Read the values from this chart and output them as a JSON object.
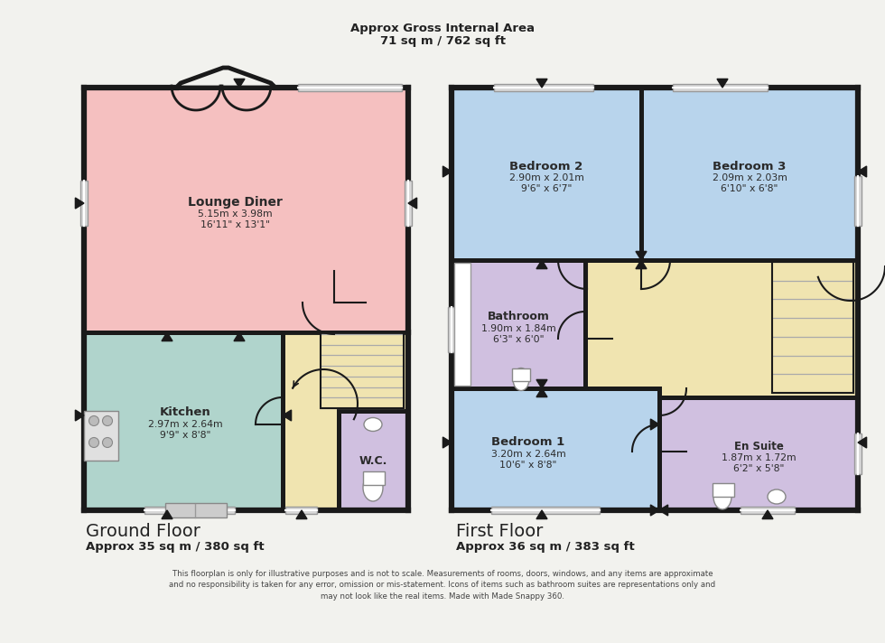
{
  "title_line1": "Approx Gross Internal Area",
  "title_line2": "71 sq m / 762 sq ft",
  "background_color": "#f2f2ee",
  "wall_color": "#1a1a1a",
  "rooms": {
    "lounge": {
      "label": "Lounge Diner",
      "sub1": "5.15m x 3.98m",
      "sub2": "16'11\" x 13'1\"",
      "color": "#f5c0c0"
    },
    "kitchen": {
      "label": "Kitchen",
      "sub1": "2.97m x 2.64m",
      "sub2": "9'9\" x 8'8\"",
      "color": "#b0d4cc"
    },
    "wc": {
      "label": "W.C.",
      "color": "#d0c0e0"
    },
    "hallway_gf": {
      "color": "#f0e4b0"
    },
    "bedroom1": {
      "label": "Bedroom 1",
      "sub1": "3.20m x 2.64m",
      "sub2": "10'6\" x 8'8\"",
      "color": "#b8d4ec"
    },
    "bedroom2": {
      "label": "Bedroom 2",
      "sub1": "2.90m x 2.01m",
      "sub2": "9'6\" x 6'7\"",
      "color": "#b8d4ec"
    },
    "bedroom3": {
      "label": "Bedroom 3",
      "sub1": "2.09m x 2.03m",
      "sub2": "6'10\" x 6'8\"",
      "color": "#b8d4ec"
    },
    "bathroom": {
      "label": "Bathroom",
      "sub1": "1.90m x 1.84m",
      "sub2": "6'3\" x 6'0\"",
      "color": "#d0c0e0"
    },
    "ensuite": {
      "label": "En Suite",
      "sub1": "1.87m x 1.72m",
      "sub2": "6'2\" x 5'8\"",
      "color": "#d0c0e0"
    },
    "landing": {
      "color": "#f0e4b0"
    }
  },
  "ground_floor_label": "Ground Floor",
  "ground_floor_sublabel": "Approx 35 sq m / 380 sq ft",
  "first_floor_label": "First Floor",
  "first_floor_sublabel": "Approx 36 sq m / 383 sq ft",
  "disclaimer": "This floorplan is only for illustrative purposes and is not to scale. Measurements of rooms, doors, windows, and any items are approximate\nand no responsibility is taken for any error, omission or mis-statement. Icons of items such as bathroom suites are representations only and\nmay not look like the real items. Made with Made Snappy 360."
}
